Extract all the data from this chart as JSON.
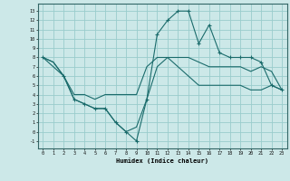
{
  "xlabel": "Humidex (Indice chaleur)",
  "background_color": "#cce8e8",
  "grid_color": "#99cccc",
  "line_color": "#1a6b6b",
  "xlim": [
    -0.5,
    23.5
  ],
  "ylim": [
    -1.8,
    13.8
  ],
  "xticks": [
    0,
    1,
    2,
    3,
    4,
    5,
    6,
    7,
    8,
    9,
    10,
    11,
    12,
    13,
    14,
    15,
    16,
    17,
    18,
    19,
    20,
    21,
    22,
    23
  ],
  "yticks": [
    -1,
    0,
    1,
    2,
    3,
    4,
    5,
    6,
    7,
    8,
    9,
    10,
    11,
    12,
    13
  ],
  "line1_x": [
    0,
    1,
    2,
    3,
    4,
    5,
    6,
    7,
    8,
    9,
    10,
    11,
    12,
    13,
    14,
    15,
    16,
    17,
    18,
    19,
    20,
    21,
    22,
    23
  ],
  "line1_y": [
    8,
    7.5,
    6,
    3.5,
    3,
    2.5,
    2.5,
    1,
    0,
    0.5,
    3.5,
    7,
    8,
    7,
    6,
    5,
    5,
    5,
    5,
    5,
    4.5,
    4.5,
    5,
    4.5
  ],
  "line2_x": [
    0,
    1,
    2,
    3,
    4,
    5,
    6,
    7,
    8,
    9,
    10,
    11,
    12,
    13,
    14,
    15,
    16,
    17,
    18,
    19,
    20,
    21,
    22,
    23
  ],
  "line2_y": [
    8,
    7.5,
    6,
    4,
    4,
    3.5,
    4,
    4,
    4,
    4,
    7,
    8,
    8,
    8,
    8,
    7.5,
    7,
    7,
    7,
    7,
    6.5,
    7,
    6.5,
    4.5
  ],
  "line3_x": [
    0,
    2,
    3,
    4,
    5,
    6,
    7,
    8,
    9,
    10,
    11,
    12,
    13,
    14,
    15,
    16,
    17,
    18,
    19,
    20,
    21,
    22,
    23
  ],
  "line3_y": [
    8,
    6,
    3.5,
    3,
    2.5,
    2.5,
    1,
    0,
    -1,
    3.5,
    10.5,
    12,
    13,
    13,
    9.5,
    11.5,
    8.5,
    8,
    8,
    8,
    7.5,
    5,
    4.5
  ]
}
